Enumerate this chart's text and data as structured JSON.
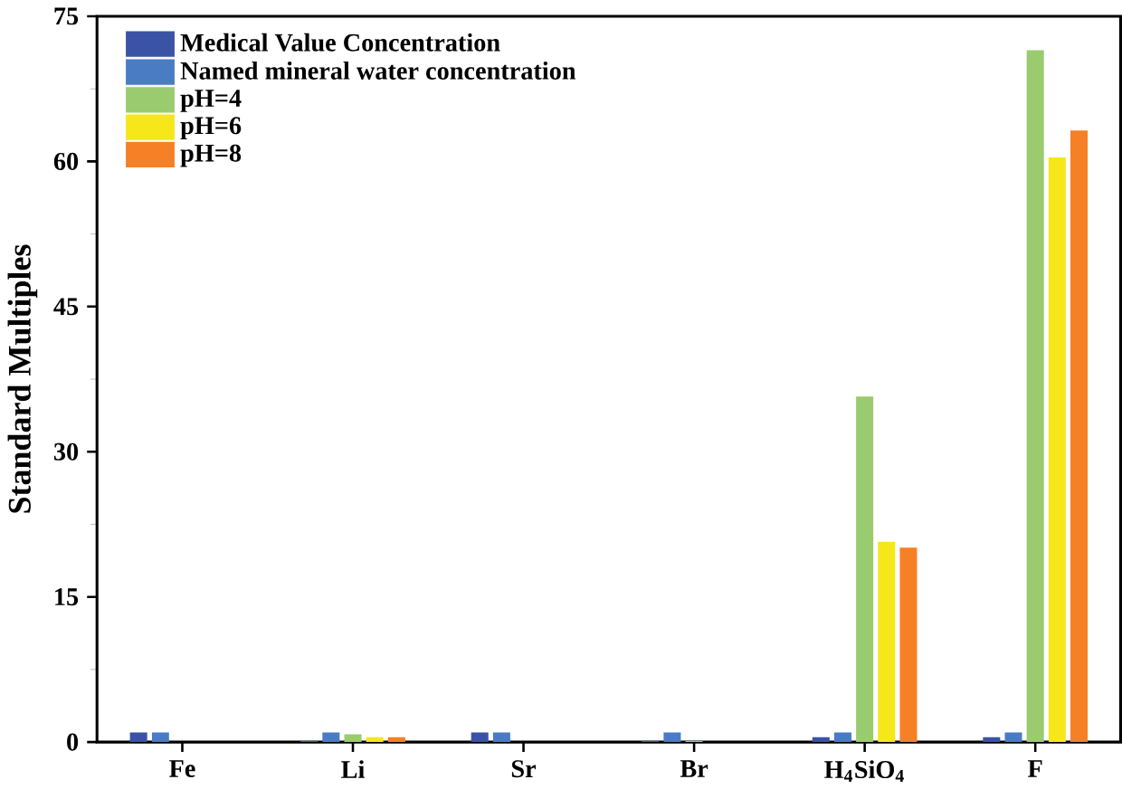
{
  "chart_data": {
    "type": "bar",
    "ylabel": "Standard Multiples",
    "categories": [
      "Fe",
      "Li",
      "Sr",
      "Br",
      "H$_{4}$SiO$_{4}$",
      "F"
    ],
    "series": [
      {
        "name": "Medical Value Concentration",
        "color": "#3a53a4",
        "values": [
          1,
          0.1,
          1,
          0.1,
          0.5,
          0.5
        ]
      },
      {
        "name": "Named mineral water concentration",
        "color": "#4a7cc4",
        "values": [
          1,
          1,
          1,
          1,
          1,
          1
        ]
      },
      {
        "name": "pH=4",
        "color": "#9acb6e",
        "values": [
          0,
          0.8,
          0,
          0.1,
          35.7,
          71.5
        ]
      },
      {
        "name": "pH=6",
        "color": "#f5e71a",
        "values": [
          0,
          0.5,
          0,
          0,
          20.7,
          60.4
        ]
      },
      {
        "name": "pH=8",
        "color": "#f58025",
        "values": [
          0,
          0.5,
          0,
          0,
          20.1,
          63.2
        ]
      }
    ],
    "ylim": [
      0,
      75
    ],
    "yticks": [
      0,
      15,
      30,
      45,
      60,
      75
    ],
    "legend": "top left",
    "grid": false
  }
}
